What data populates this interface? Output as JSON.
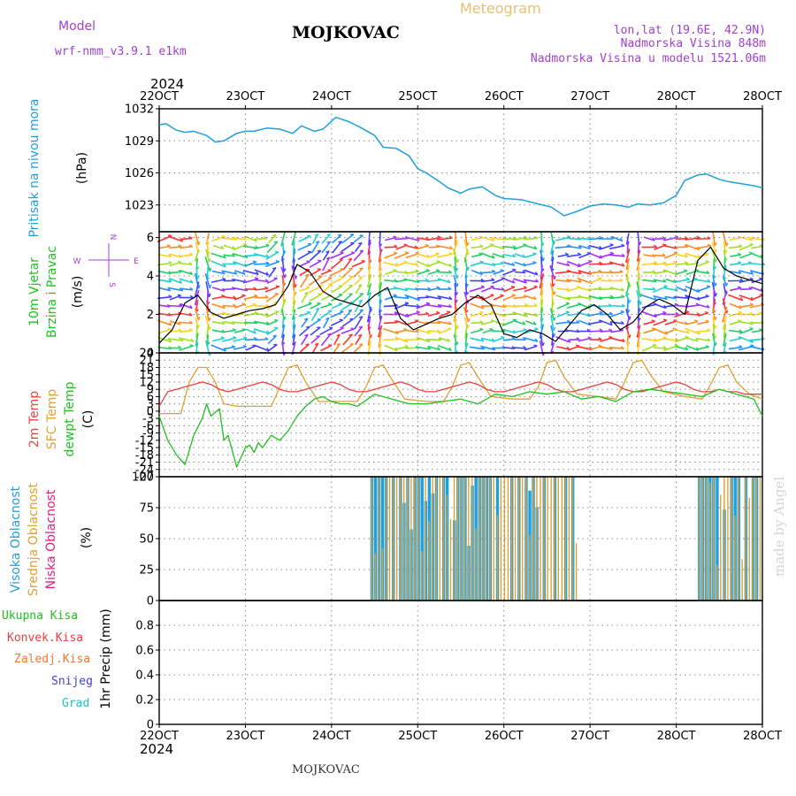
{
  "header": {
    "model_label": "Model",
    "model_name": "wrf-nmm_v3.9.1  e1km",
    "station": "MOJKOVAC",
    "product": "Meteogram",
    "lonlat": "lon,lat (19.6E, 42.9N)",
    "elevation": "Nadmorska Visina 848m",
    "model_elevation": "Nadmorska Visina u modelu 1521.06m",
    "year_top": "2024",
    "year_bottom": "2024",
    "footer_station": "MOJKOVAC",
    "watermark": "made by Angel"
  },
  "colors": {
    "pressure": "#1e9fe0",
    "temp2m": "#e84040",
    "sfc": "#e0a030",
    "dewpt": "#20c020",
    "high_cloud": "#1e9fe0",
    "mid_cloud": "#e0a030",
    "low_cloud": "#e0207a",
    "purple": "#a040d0"
  },
  "chart_data": {
    "x_ticks": [
      "22OCT",
      "23OCT",
      "24OCT",
      "25OCT",
      "26OCT",
      "27OCT",
      "28OCT"
    ],
    "panels": [
      {
        "type": "line",
        "key": "pressure",
        "ylabel_lines": [
          "Pritisak na nivou mora",
          "(hPa)"
        ],
        "yticks": [
          1023,
          1026,
          1029,
          1032
        ],
        "ylim": [
          1020.5,
          1032
        ],
        "series": [
          {
            "name": "Pritisak na nivou mora",
            "x": [
              0,
              0.08,
              0.2,
              0.3,
              0.4,
              0.55,
              0.65,
              0.75,
              0.9,
              1.0,
              1.1,
              1.25,
              1.4,
              1.55,
              1.65,
              1.8,
              1.9,
              2.05,
              2.2,
              2.35,
              2.5,
              2.6,
              2.75,
              2.9,
              3.0,
              3.1,
              3.25,
              3.35,
              3.5,
              3.6,
              3.75,
              3.9,
              4.0,
              4.2,
              4.4,
              4.55,
              4.7,
              4.85,
              5.0,
              5.15,
              5.3,
              5.45,
              5.55,
              5.7,
              5.85,
              6.0,
              6.1,
              6.25,
              6.35,
              6.5,
              6.6,
              6.75,
              6.9,
              7.0
            ],
            "values": [
              1030.5,
              1030.6,
              1030.0,
              1029.8,
              1029.9,
              1029.5,
              1028.9,
              1029.0,
              1029.7,
              1029.9,
              1029.9,
              1030.2,
              1030.1,
              1029.7,
              1030.4,
              1029.9,
              1030.1,
              1031.2,
              1030.8,
              1030.2,
              1029.5,
              1028.4,
              1028.3,
              1027.6,
              1026.4,
              1026.0,
              1025.2,
              1024.6,
              1024.1,
              1024.5,
              1024.7,
              1023.9,
              1023.6,
              1023.5,
              1023.1,
              1022.8,
              1022.0,
              1022.4,
              1022.9,
              1023.1,
              1023.0,
              1022.8,
              1023.1,
              1023.0,
              1023.2,
              1023.9,
              1025.3,
              1025.8,
              1025.9,
              1025.4,
              1025.2,
              1025.0,
              1024.8,
              1024.6
            ]
          }
        ]
      },
      {
        "type": "line",
        "key": "wind",
        "ylabel_lines": [
          "10m Vjetar",
          "Brzina i Pravac",
          "(m/s)"
        ],
        "compass": [
          "N",
          "W",
          "E",
          "S"
        ],
        "yticks": [
          0,
          2,
          4,
          6
        ],
        "ylim": [
          0,
          6.3
        ],
        "series": [
          {
            "name": "10m Vjetar",
            "x": [
              0,
              0.15,
              0.3,
              0.45,
              0.6,
              0.75,
              0.9,
              1.05,
              1.2,
              1.35,
              1.5,
              1.6,
              1.75,
              1.9,
              2.05,
              2.2,
              2.35,
              2.5,
              2.65,
              2.8,
              2.95,
              3.1,
              3.25,
              3.4,
              3.55,
              3.7,
              3.85,
              4.0,
              4.15,
              4.3,
              4.45,
              4.6,
              4.75,
              4.9,
              5.05,
              5.2,
              5.35,
              5.5,
              5.65,
              5.8,
              5.95,
              6.1,
              6.25,
              6.4,
              6.55,
              6.7,
              6.85,
              7.0
            ],
            "values": [
              0.5,
              1.2,
              2.6,
              3.0,
              2.1,
              1.8,
              2.0,
              2.2,
              2.3,
              2.5,
              3.5,
              4.6,
              4.2,
              3.2,
              2.8,
              2.6,
              2.4,
              3.0,
              3.4,
              1.8,
              1.2,
              1.5,
              1.8,
              2.0,
              2.6,
              3.0,
              2.5,
              1.0,
              0.8,
              1.2,
              1.0,
              0.6,
              1.4,
              2.2,
              2.5,
              2.0,
              1.2,
              1.6,
              2.4,
              2.8,
              2.5,
              2.0,
              4.8,
              5.5,
              4.4,
              4.0,
              3.8,
              3.6
            ]
          }
        ]
      },
      {
        "type": "line",
        "key": "temperature",
        "ylabel_lines": [
          "2m Temp",
          "SFC Temp",
          "dewpt Temp",
          "(C)"
        ],
        "yticks": [
          -27,
          -24,
          -21,
          -18,
          -15,
          -12,
          -9,
          -6,
          -3,
          0,
          3,
          6,
          9,
          12,
          15,
          18,
          21,
          24
        ],
        "ylim": [
          -27,
          24
        ],
        "series": [
          {
            "name": "2m Temp",
            "x": [
              0,
              0.1,
              0.2,
              0.3,
              0.4,
              0.5,
              0.6,
              0.7,
              0.8,
              0.9,
              1.0,
              1.1,
              1.2,
              1.3,
              1.4,
              1.5,
              1.6,
              1.7,
              1.8,
              1.9,
              2.0,
              2.1,
              2.2,
              2.3,
              2.4,
              2.5,
              2.6,
              2.7,
              2.8,
              2.9,
              3.0,
              3.1,
              3.2,
              3.3,
              3.4,
              3.5,
              3.6,
              3.7,
              3.8,
              3.9,
              4.0,
              4.1,
              4.2,
              4.3,
              4.4,
              4.5,
              4.6,
              4.7,
              4.8,
              4.9,
              5.0,
              5.1,
              5.2,
              5.3,
              5.4,
              5.5,
              5.6,
              5.7,
              5.8,
              5.9,
              6.0,
              6.1,
              6.2,
              6.3,
              6.4,
              6.5,
              6.6,
              6.7,
              6.8,
              6.9,
              7.0
            ],
            "values": [
              2,
              8,
              9,
              10,
              11,
              12,
              11,
              9,
              8,
              9,
              10,
              11,
              12,
              11,
              9,
              8,
              8,
              9,
              10,
              11,
              12,
              11,
              9,
              8,
              8,
              9,
              10,
              11,
              12,
              11,
              9,
              8,
              8,
              9,
              10,
              11,
              12,
              11,
              9,
              8,
              8,
              9,
              10,
              11,
              12,
              11,
              9,
              8,
              8,
              9,
              10,
              11,
              12,
              11,
              9,
              8,
              8,
              9,
              10,
              11,
              12,
              11,
              9,
              8,
              8,
              9,
              8,
              8,
              7,
              7,
              7
            ]
          },
          {
            "name": "SFC Temp",
            "x": [
              0,
              0.1,
              0.25,
              0.35,
              0.45,
              0.55,
              0.65,
              0.75,
              0.9,
              1.1,
              1.3,
              1.4,
              1.5,
              1.6,
              1.7,
              1.85,
              2.1,
              2.3,
              2.4,
              2.5,
              2.6,
              2.7,
              2.85,
              3.1,
              3.3,
              3.4,
              3.5,
              3.6,
              3.7,
              3.85,
              4.1,
              4.3,
              4.4,
              4.5,
              4.6,
              4.7,
              4.85,
              5.1,
              5.3,
              5.4,
              5.5,
              5.6,
              5.7,
              5.85,
              6.1,
              6.3,
              6.4,
              6.5,
              6.6,
              6.7,
              6.85,
              7.0
            ],
            "values": [
              -1,
              -1,
              -1,
              12,
              18,
              18,
              12,
              3,
              2,
              2,
              2,
              10,
              18,
              19,
              12,
              4,
              4,
              4,
              10,
              18,
              19,
              13,
              5,
              4,
              4,
              10,
              19,
              20,
              14,
              6,
              5,
              5,
              10,
              20,
              21,
              14,
              7,
              6,
              5,
              12,
              20,
              21,
              15,
              8,
              6,
              5,
              11,
              18,
              19,
              12,
              7,
              5
            ]
          },
          {
            "name": "dewpt Temp",
            "x": [
              0,
              0.1,
              0.2,
              0.3,
              0.4,
              0.5,
              0.55,
              0.6,
              0.7,
              0.75,
              0.8,
              0.9,
              1.0,
              1.05,
              1.1,
              1.15,
              1.2,
              1.3,
              1.4,
              1.5,
              1.6,
              1.7,
              1.8,
              1.9,
              2.0,
              2.1,
              2.2,
              2.3,
              2.5,
              2.7,
              2.9,
              3.1,
              3.3,
              3.5,
              3.7,
              3.9,
              4.1,
              4.3,
              4.5,
              4.7,
              4.9,
              5.1,
              5.3,
              5.5,
              5.7,
              5.9,
              6.1,
              6.3,
              6.5,
              6.6,
              6.7,
              6.8,
              6.9,
              7.0
            ],
            "values": [
              -2,
              -12,
              -18,
              -22,
              -10,
              -3,
              3,
              -2,
              1,
              -12,
              -10,
              -23,
              -15,
              -14,
              -17,
              -13,
              -15,
              -10,
              -12,
              -8,
              -2,
              2,
              5,
              6,
              4,
              3,
              3,
              2,
              7,
              5,
              3,
              3,
              4,
              5,
              3,
              7,
              6,
              8,
              7,
              8,
              5,
              6,
              4,
              8,
              9,
              8,
              7,
              6,
              9,
              8,
              7,
              6,
              5,
              -2
            ]
          }
        ]
      },
      {
        "type": "bar",
        "key": "clouds",
        "ylabel_lines": [
          "Visoka Oblacnost",
          "Srednja Oblacnost",
          "Niska Oblacnost",
          "(%)"
        ],
        "yticks": [
          0,
          25,
          50,
          75,
          100
        ],
        "ylim": [
          0,
          100
        ],
        "bar_spans": [
          [
            2.45,
            4.85
          ],
          [
            6.25,
            7.0
          ]
        ],
        "dry_spans": [
          [
            0,
            2.45
          ],
          [
            4.85,
            6.25
          ]
        ]
      },
      {
        "type": "line",
        "key": "precip",
        "ylabel_lines": [
          "1hr Precip (mm)"
        ],
        "legend": [
          "Ukupna  Kisa",
          "Konvek.Kisa",
          "Zaledj.Kisa",
          "Snijeg",
          "Grad"
        ],
        "yticks": [
          0,
          0.2,
          0.4,
          0.6,
          0.8
        ],
        "ylim": [
          0,
          1.0
        ],
        "series": []
      }
    ]
  }
}
